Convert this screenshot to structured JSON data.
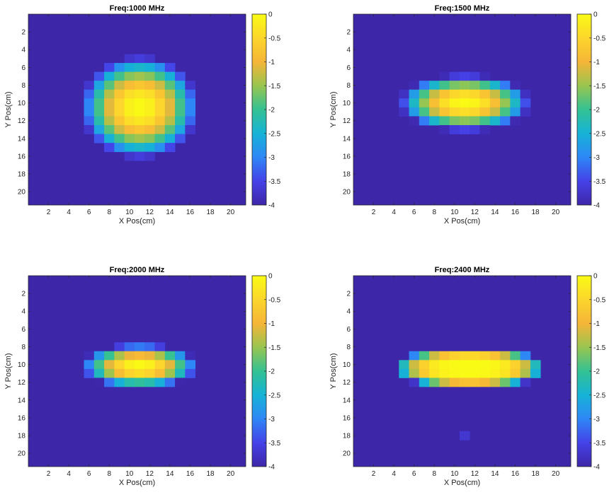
{
  "chart_data": [
    {
      "type": "heatmap",
      "title": "Freq:1000 MHz",
      "xlabel": "X Pos(cm)",
      "ylabel": "Y Pos(cm)",
      "xlim": [
        0,
        21.5
      ],
      "ylim": [
        0,
        21.5
      ],
      "x_ticks": [
        2,
        4,
        6,
        8,
        10,
        12,
        14,
        16,
        18,
        20
      ],
      "y_ticks": [
        2,
        4,
        6,
        8,
        10,
        12,
        14,
        16,
        18,
        20
      ],
      "colorbar": {
        "range": [
          -4,
          0
        ],
        "ticks": [
          0,
          -0.5,
          -1,
          -1.5,
          -2,
          -2.5,
          -3,
          -3.5,
          -4
        ],
        "tick_labels": [
          "0",
          "-0.5",
          "-1",
          "-1.5",
          "-2",
          "-2.5",
          "-3",
          "-3.5",
          "-4"
        ]
      },
      "field": {
        "cx": 11,
        "cy": 10.5,
        "rx": 5.8,
        "ry": 5.8,
        "power": 2,
        "floor": -4
      },
      "colormap": "parula"
    },
    {
      "type": "heatmap",
      "title": "Freq:1500 MHz",
      "xlabel": "X Pos(cm)",
      "ylabel": "Y Pos(cm)",
      "xlim": [
        0,
        21.5
      ],
      "ylim": [
        0,
        21.5
      ],
      "x_ticks": [
        2,
        4,
        6,
        8,
        10,
        12,
        14,
        16,
        18,
        20
      ],
      "y_ticks": [
        2,
        4,
        6,
        8,
        10,
        12,
        14,
        16,
        18,
        20
      ],
      "colorbar": {
        "range": [
          -4,
          0
        ],
        "ticks": [
          0,
          -0.5,
          -1,
          -1.5,
          -2,
          -2.5,
          -3,
          -3.5,
          -4
        ],
        "tick_labels": [
          "0",
          "-0.5",
          "-1",
          "-1.5",
          "-2",
          "-2.5",
          "-3",
          "-3.5",
          "-4"
        ]
      },
      "field": {
        "cx": 11,
        "cy": 10,
        "rx": 6.5,
        "ry": 3.2,
        "power": 2,
        "floor": -4
      },
      "colormap": "parula"
    },
    {
      "type": "heatmap",
      "title": "Freq:2000 MHz",
      "xlabel": "X Pos(cm)",
      "ylabel": "Y Pos(cm)",
      "xlim": [
        0,
        21.5
      ],
      "ylim": [
        0,
        21.5
      ],
      "x_ticks": [
        2,
        4,
        6,
        8,
        10,
        12,
        14,
        16,
        18,
        20
      ],
      "y_ticks": [
        2,
        4,
        6,
        8,
        10,
        12,
        14,
        16,
        18,
        20
      ],
      "colorbar": {
        "range": [
          -4,
          0
        ],
        "ticks": [
          0,
          -0.5,
          -1,
          -1.5,
          -2,
          -2.5,
          -3,
          -3.5,
          -4
        ],
        "tick_labels": [
          "0",
          "-0.5",
          "-1",
          "-1.5",
          "-2",
          "-2.5",
          "-3",
          "-3.5",
          "-4"
        ]
      },
      "field": {
        "cx": 11,
        "cy": 10.2,
        "rx": 5.8,
        "ry": 2.5,
        "power": 2,
        "floor": -4
      },
      "colormap": "parula"
    },
    {
      "type": "heatmap",
      "title": "Freq:2400 MHz",
      "xlabel": "X Pos(cm)",
      "ylabel": "Y Pos(cm)",
      "xlim": [
        0,
        21.5
      ],
      "ylim": [
        0,
        21.5
      ],
      "x_ticks": [
        2,
        4,
        6,
        8,
        10,
        12,
        14,
        16,
        18,
        20
      ],
      "y_ticks": [
        2,
        4,
        6,
        8,
        10,
        12,
        14,
        16,
        18,
        20
      ],
      "colorbar": {
        "range": [
          -4,
          0
        ],
        "ticks": [
          0,
          -0.5,
          -1,
          -1.5,
          -2,
          -2.5,
          -3,
          -3.5,
          -4
        ],
        "tick_labels": [
          "0",
          "-0.5",
          "-1",
          "-1.5",
          "-2",
          "-2.5",
          "-3",
          "-3.5",
          "-4"
        ]
      },
      "field": {
        "cx": 11.5,
        "cy": 10.4,
        "rx": 7.6,
        "ry": 2.4,
        "power": 4,
        "floor": -4,
        "spot": {
          "x": 11,
          "y": 18,
          "value": -3.7
        }
      },
      "colormap": "parula"
    }
  ],
  "colormap_stops": [
    "#3e26a8",
    "#4542e8",
    "#2e87f7",
    "#16b3d6",
    "#34c193",
    "#98c550",
    "#f5b538",
    "#fcd62c",
    "#f9fb14"
  ]
}
